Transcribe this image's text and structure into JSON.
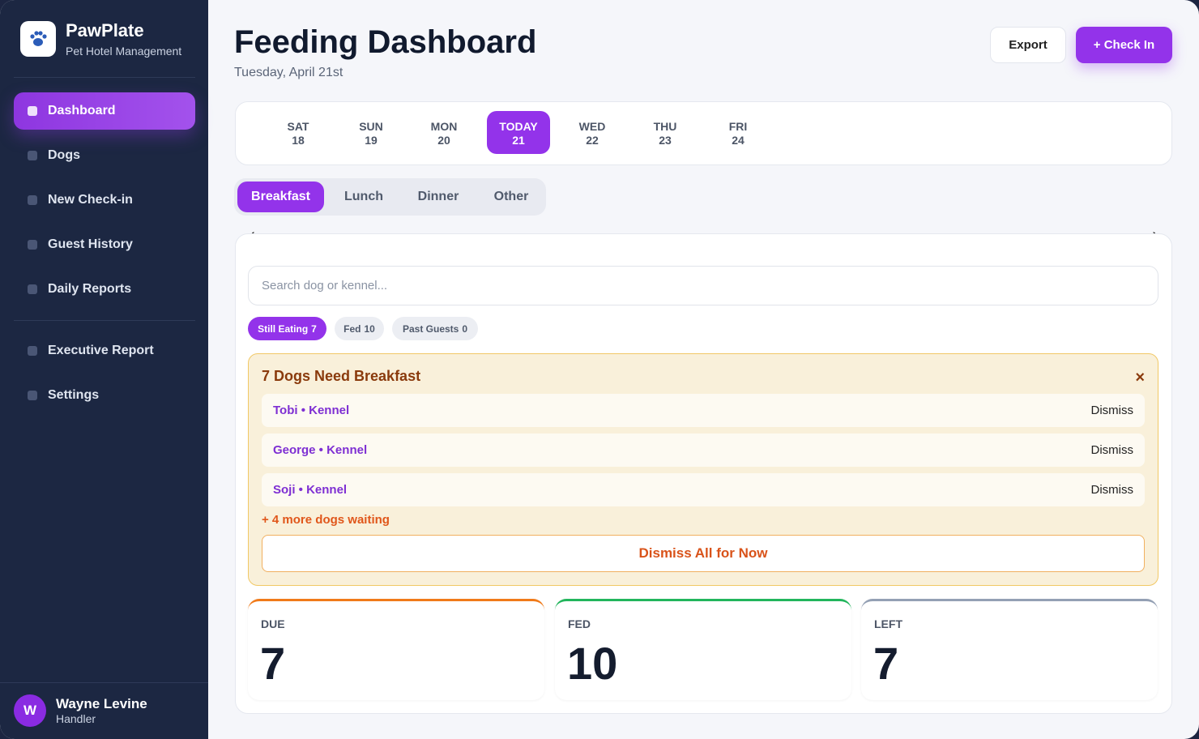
{
  "sidebar": {
    "brand": "PawPlate",
    "tagline": "Pet Hotel Management",
    "nav": [
      "Dashboard",
      "Dogs",
      "New Check-in",
      "Guest History",
      "Daily Reports"
    ],
    "nav_secondary": [
      "Executive Report",
      "Settings"
    ],
    "user": {
      "initial": "W",
      "name": "Wayne Levine",
      "role": "Handler"
    }
  },
  "header": {
    "title": "Feeding Dashboard",
    "date": "Tuesday, April 21st",
    "export": "Export",
    "check_in": "+ Check In"
  },
  "days": {
    "prev": "‹",
    "next": "›",
    "items": [
      {
        "day": "SAT",
        "num": 18
      },
      {
        "day": "SUN",
        "num": 19
      },
      {
        "day": "MON",
        "num": 20
      },
      {
        "day": "TODAY",
        "num": 21
      },
      {
        "day": "WED",
        "num": 22
      },
      {
        "day": "THU",
        "num": 23
      },
      {
        "day": "FRI",
        "num": 24
      }
    ]
  },
  "meals": [
    "Breakfast",
    "Lunch",
    "Dinner",
    "Other"
  ],
  "search_placeholder": "Search dog or kennel...",
  "filters": [
    {
      "label": "Still Eating",
      "count": 7
    },
    {
      "label": "Fed",
      "count": 10
    },
    {
      "label": "Past Guests",
      "count": 0
    }
  ],
  "alert": {
    "title": "7 Dogs Need Breakfast",
    "close": "×",
    "dogs": [
      "Tobi • Kennel",
      "George • Kennel",
      "Soji • Kennel"
    ],
    "dismiss": "Dismiss",
    "more": "+ 4 more dogs waiting",
    "dismiss_all": "Dismiss All for Now"
  },
  "stats": [
    {
      "label": "DUE",
      "value": 7,
      "color": "#f07a1a"
    },
    {
      "label": "FED",
      "value": 10,
      "color": "#22b55c"
    },
    {
      "label": "LEFT",
      "value": 7,
      "color": "#94a0b4"
    }
  ]
}
